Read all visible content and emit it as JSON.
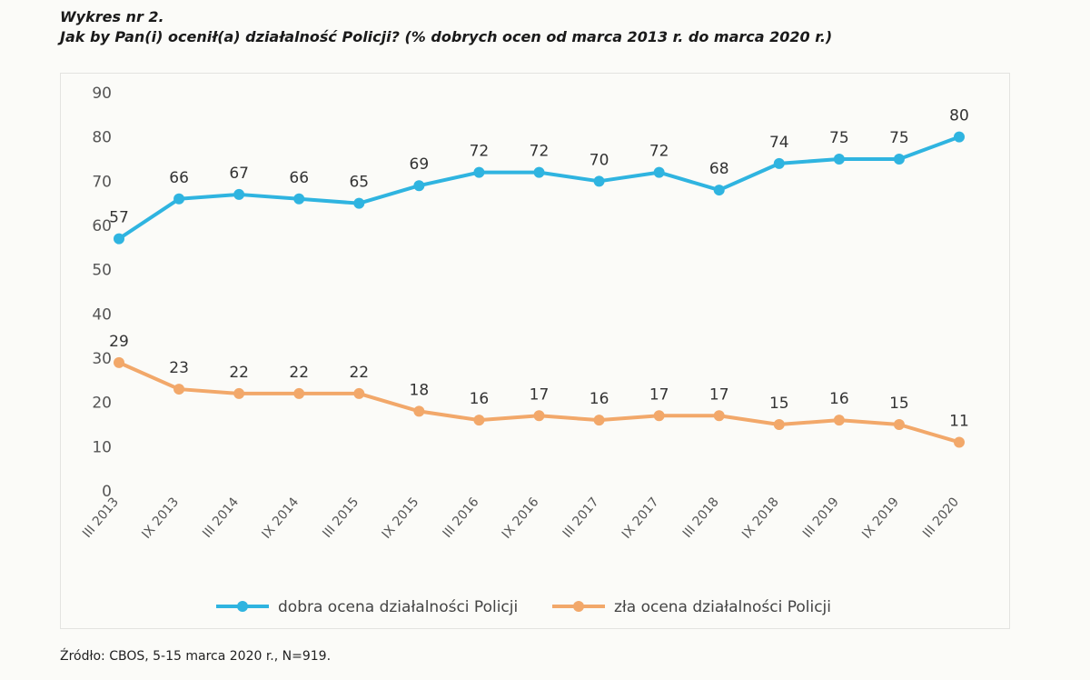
{
  "heading": {
    "number": "Wykres nr 2.",
    "question": "Jak by Pan(i) ocenił(a) działalność Policji? (% dobrych ocen od marca 2013 r. do marca 2020 r.)"
  },
  "source": "Źródło: CBOS, 5-15 marca 2020 r., N=919.",
  "chart_data": {
    "type": "line",
    "categories": [
      "III 2013",
      "IX 2013",
      "III 2014",
      "IX 2014",
      "III 2015",
      "IX 2015",
      "III 2016",
      "IX 2016",
      "III 2017",
      "IX 2017",
      "III 2018",
      "IX 2018",
      "III 2019",
      "IX 2019",
      "III 2020"
    ],
    "y_ticks": [
      "0",
      "10",
      "20",
      "30",
      "40",
      "50",
      "60",
      "70",
      "80",
      "90"
    ],
    "ylim": [
      0,
      90
    ],
    "grid": false,
    "legend_position": "bottom",
    "series": [
      {
        "name": "dobra ocena działalności Policji",
        "color": "#2fb4e0",
        "values": [
          57,
          66,
          67,
          66,
          65,
          69,
          72,
          72,
          70,
          72,
          68,
          74,
          75,
          75,
          80
        ],
        "labels": [
          "57",
          "66",
          "67",
          "66",
          "65",
          "69",
          "72",
          "72",
          "70",
          "72",
          "68",
          "74",
          "75",
          "75",
          "80"
        ]
      },
      {
        "name": "zła ocena działalności Policji",
        "color": "#f2a86a",
        "values": [
          29,
          23,
          22,
          22,
          22,
          18,
          16,
          17,
          16,
          17,
          17,
          15,
          16,
          15,
          11
        ],
        "labels": [
          "29",
          "23",
          "22",
          "22",
          "22",
          "18",
          "16",
          "17",
          "16",
          "17",
          "17",
          "15",
          "16",
          "15",
          "11"
        ]
      }
    ]
  }
}
